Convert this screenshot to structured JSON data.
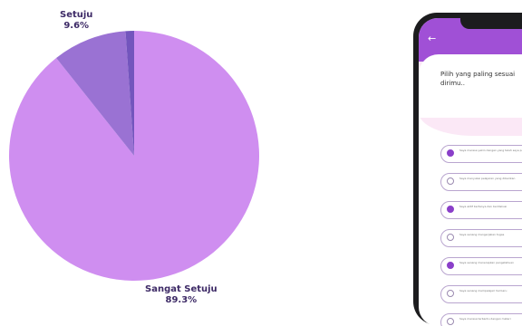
{
  "chart_data": {
    "type": "pie",
    "slices": [
      {
        "label": "Sangat Setuju",
        "value": 89.3,
        "display": "89.3%",
        "color": "#cf8ef0"
      },
      {
        "label": "Setuju",
        "value": 9.6,
        "display": "9.6%",
        "color": "#9a72d3"
      },
      {
        "label": "",
        "value": 1.1,
        "display": "",
        "color": "#7355bd"
      }
    ],
    "start": "top, clockwise",
    "legend": "none"
  },
  "phone": {
    "back_icon": "back-arrow-icon",
    "back_glyph": "←",
    "accent": "#a050d6",
    "panel_color": "#fbe8f6",
    "prompt": "Pilih yang paling sesuai dirimu..",
    "options": [
      {
        "text": "Saya merasa yakin dengan yang telah saya pelajari hari ini",
        "selected": true
      },
      {
        "text": "Saya menyukai pelajaran yang diberikan",
        "selected": false
      },
      {
        "text": "Saya aktif bertanya dan berdiskusi",
        "selected": true
      },
      {
        "text": "Saya senang mengerjakan tugas",
        "selected": false
      },
      {
        "text": "Saya senang menerapkan pengetahuan",
        "selected": true
      },
      {
        "text": "Saya senang mempelajari hal baru",
        "selected": false
      },
      {
        "text": "Saya merasa terbantu dengan materi",
        "selected": false
      }
    ]
  }
}
